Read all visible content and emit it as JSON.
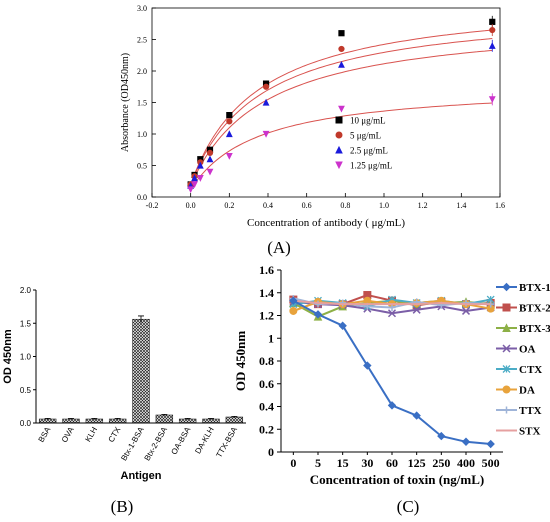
{
  "panels": {
    "a_label": "(A)",
    "b_label": "(B)",
    "c_label": "(C)"
  },
  "chart_data": [
    {
      "panel": "A",
      "type": "scatter",
      "xlabel": "Concentration of antibody ( μg/mL)",
      "ylabel": "Absorbance (OD450nm)",
      "xlim": [
        -0.2,
        1.6
      ],
      "ylim": [
        0.0,
        3.0
      ],
      "xticks": [
        -0.2,
        0.0,
        0.2,
        0.4,
        0.6,
        0.8,
        1.0,
        1.2,
        1.4,
        1.6
      ],
      "xtick_labels": [
        "-0.2",
        "0.0",
        "0.2",
        "0.4",
        "0.6",
        "0.8",
        "1.0",
        "1.2",
        "1.4",
        "1.6"
      ],
      "yticks": [
        0.0,
        0.5,
        1.0,
        1.5,
        2.0,
        2.5,
        3.0
      ],
      "ytick_labels": [
        "0.0",
        "0.5",
        "1.0",
        "1.5",
        "2.0",
        "2.5",
        "3.0"
      ],
      "legend_position": "right",
      "fit_color": "#d9534f",
      "series": [
        {
          "name": "10 μg/mL",
          "marker": "square",
          "color": "#000000",
          "x": [
            0.0,
            0.02,
            0.05,
            0.1,
            0.2,
            0.39,
            0.78,
            1.56
          ],
          "y": [
            0.2,
            0.35,
            0.6,
            0.75,
            1.3,
            1.8,
            2.6,
            2.78
          ],
          "fit_max": 3.2,
          "fit_k": 0.35
        },
        {
          "name": "5 μg/mL",
          "marker": "circle",
          "color": "#c0392b",
          "x": [
            0.0,
            0.02,
            0.05,
            0.1,
            0.2,
            0.39,
            0.78,
            1.56
          ],
          "y": [
            0.2,
            0.33,
            0.55,
            0.7,
            1.2,
            1.75,
            2.35,
            2.65
          ],
          "fit_max": 3.05,
          "fit_k": 0.36
        },
        {
          "name": "2.5 μg/mL",
          "marker": "triangle-up",
          "color": "#1a1adb",
          "x": [
            0.0,
            0.02,
            0.05,
            0.1,
            0.2,
            0.39,
            0.78,
            1.56
          ],
          "y": [
            0.18,
            0.3,
            0.5,
            0.6,
            1.0,
            1.5,
            2.1,
            2.4
          ],
          "fit_max": 2.85,
          "fit_k": 0.38
        },
        {
          "name": "1.25 μg/mL",
          "marker": "triangle-down",
          "color": "#cc33cc",
          "x": [
            0.0,
            0.02,
            0.05,
            0.1,
            0.2,
            0.39,
            0.78,
            1.56
          ],
          "y": [
            0.12,
            0.2,
            0.3,
            0.4,
            0.65,
            1.0,
            1.4,
            1.55
          ],
          "fit_max": 1.8,
          "fit_k": 0.35
        }
      ]
    },
    {
      "panel": "B",
      "type": "bar",
      "xlabel": "Antigen",
      "ylabel": "OD 450nm",
      "ylim": [
        0.0,
        2.0
      ],
      "yticks": [
        0.0,
        0.5,
        1.0,
        1.5,
        2.0
      ],
      "ytick_labels": [
        "0.0",
        "0.5",
        "1.0",
        "1.5",
        "2.0"
      ],
      "categories": [
        "BSA",
        "OVA",
        "KLH",
        "CTX",
        "Btx-1-BSA",
        "Btx-2-BSA",
        "OA-BSA",
        "DA-KLH",
        "TTX-BSA"
      ],
      "values": [
        0.06,
        0.06,
        0.06,
        0.06,
        1.56,
        0.12,
        0.06,
        0.06,
        0.09
      ],
      "errors": [
        0.01,
        0.01,
        0.01,
        0.01,
        0.05,
        0.01,
        0.01,
        0.01,
        0.01
      ]
    },
    {
      "panel": "C",
      "type": "line",
      "xlabel": "Concentration of toxin (ng/mL)",
      "ylabel": "OD 450nm",
      "categories": [
        "0",
        "5",
        "15",
        "30",
        "60",
        "125",
        "250",
        "400",
        "500"
      ],
      "ylim": [
        0,
        1.6
      ],
      "yticks": [
        0,
        0.2,
        0.4,
        0.6,
        0.8,
        1.0,
        1.2,
        1.4,
        1.6
      ],
      "ytick_labels": [
        "0",
        "0.2",
        "0.4",
        "0.6",
        "0.8",
        "1",
        "1.2",
        "1.4",
        "1.6"
      ],
      "legend_position": "right",
      "series": [
        {
          "name": "BTX-1",
          "color": "#3a6fc4",
          "marker": "diamond",
          "values": [
            1.33,
            1.21,
            1.11,
            0.76,
            0.41,
            0.32,
            0.14,
            0.09,
            0.07
          ]
        },
        {
          "name": "BTX-2",
          "color": "#c0504d",
          "marker": "square",
          "values": [
            1.34,
            1.3,
            1.3,
            1.38,
            1.33,
            1.29,
            1.32,
            1.3,
            1.31
          ]
        },
        {
          "name": "BTX-3",
          "color": "#8db046",
          "marker": "triangle-up",
          "values": [
            1.31,
            1.19,
            1.28,
            1.31,
            1.33,
            1.3,
            1.31,
            1.32,
            1.3
          ]
        },
        {
          "name": "OA",
          "color": "#7b5ea7",
          "marker": "x",
          "values": [
            1.32,
            1.3,
            1.29,
            1.26,
            1.22,
            1.25,
            1.28,
            1.24,
            1.27
          ]
        },
        {
          "name": "CTX",
          "color": "#4bacc6",
          "marker": "star",
          "values": [
            1.3,
            1.33,
            1.31,
            1.28,
            1.34,
            1.31,
            1.33,
            1.3,
            1.34
          ]
        },
        {
          "name": "DA",
          "color": "#e8a33c",
          "marker": "circle",
          "values": [
            1.24,
            1.32,
            1.3,
            1.33,
            1.3,
            1.31,
            1.33,
            1.3,
            1.26
          ]
        },
        {
          "name": "TTX",
          "color": "#9fb4d8",
          "marker": "plus",
          "values": [
            1.35,
            1.3,
            1.31,
            1.28,
            1.27,
            1.32,
            1.29,
            1.31,
            1.3
          ]
        },
        {
          "name": "STX",
          "color": "#e6a0a0",
          "marker": "none",
          "values": [
            1.33,
            1.31,
            1.3,
            1.3,
            1.3,
            1.3,
            1.31,
            1.3,
            1.3
          ]
        }
      ]
    }
  ]
}
